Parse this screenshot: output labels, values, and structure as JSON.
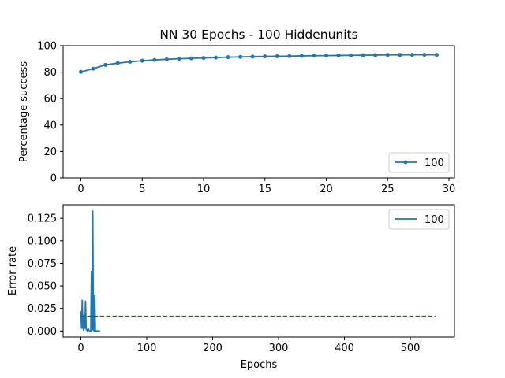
{
  "chart_data": [
    {
      "type": "line",
      "title": "NN 30 Epochs - 100 Hiddenunits",
      "xlabel": "",
      "ylabel": "Percentage success",
      "xlim": [
        -1.45,
        30.45
      ],
      "ylim": [
        0,
        100
      ],
      "x_ticks": [
        0,
        5,
        10,
        15,
        20,
        25,
        30
      ],
      "y_ticks": [
        0,
        20,
        40,
        60,
        80,
        100
      ],
      "legend_position": "lower right",
      "grid": false,
      "series": [
        {
          "name": "100",
          "color": "#1f77b4",
          "marker": "dot",
          "x": [
            0,
            1,
            2,
            3,
            4,
            5,
            6,
            7,
            8,
            9,
            10,
            11,
            12,
            13,
            14,
            15,
            16,
            17,
            18,
            19,
            20,
            21,
            22,
            23,
            24,
            25,
            26,
            27,
            28,
            29
          ],
          "values": [
            80.2,
            82.6,
            85.5,
            86.8,
            87.8,
            88.6,
            89.2,
            89.7,
            90.1,
            90.4,
            90.7,
            91.0,
            91.3,
            91.5,
            91.7,
            91.9,
            92.0,
            92.1,
            92.3,
            92.4,
            92.5,
            92.6,
            92.7,
            92.8,
            92.9,
            93.0,
            93.0,
            93.1,
            93.1,
            93.1
          ]
        }
      ]
    },
    {
      "type": "line",
      "title": "",
      "xlabel": "Epochs",
      "ylabel": "Error rate",
      "xlim": [
        -27,
        567
      ],
      "ylim": [
        -0.0067,
        0.14
      ],
      "x_ticks": [
        0,
        100,
        200,
        300,
        400,
        500
      ],
      "y_ticks": [
        "0.000",
        "0.025",
        "0.050",
        "0.075",
        "0.100",
        "0.125"
      ],
      "legend_position": "upper right",
      "grid": false,
      "series": [
        {
          "name": "100",
          "color": "#1f77b4",
          "x": [
            0,
            1,
            2,
            3,
            4,
            5,
            6,
            7,
            8,
            9,
            10,
            11,
            12,
            13,
            14,
            15,
            16,
            17,
            18,
            19,
            20,
            21,
            22,
            23,
            24,
            25,
            26,
            27,
            28,
            29
          ],
          "values": [
            0.022,
            0.003,
            0.034,
            0.004,
            0.001,
            0.018,
            0.003,
            0.033,
            0.002,
            0.001,
            0.0,
            0.003,
            0.001,
            0.0,
            0.0,
            0.0,
            0.066,
            0.001,
            0.133,
            0.002,
            0.0,
            0.039,
            0.0,
            0.0,
            0.0,
            0.0,
            0.0,
            0.0,
            0.0,
            0.0
          ]
        },
        {
          "name": "",
          "color": "#008000",
          "style": "dashed",
          "x": [
            0,
            538
          ],
          "values": [
            0.0163,
            0.0163
          ]
        }
      ]
    }
  ]
}
